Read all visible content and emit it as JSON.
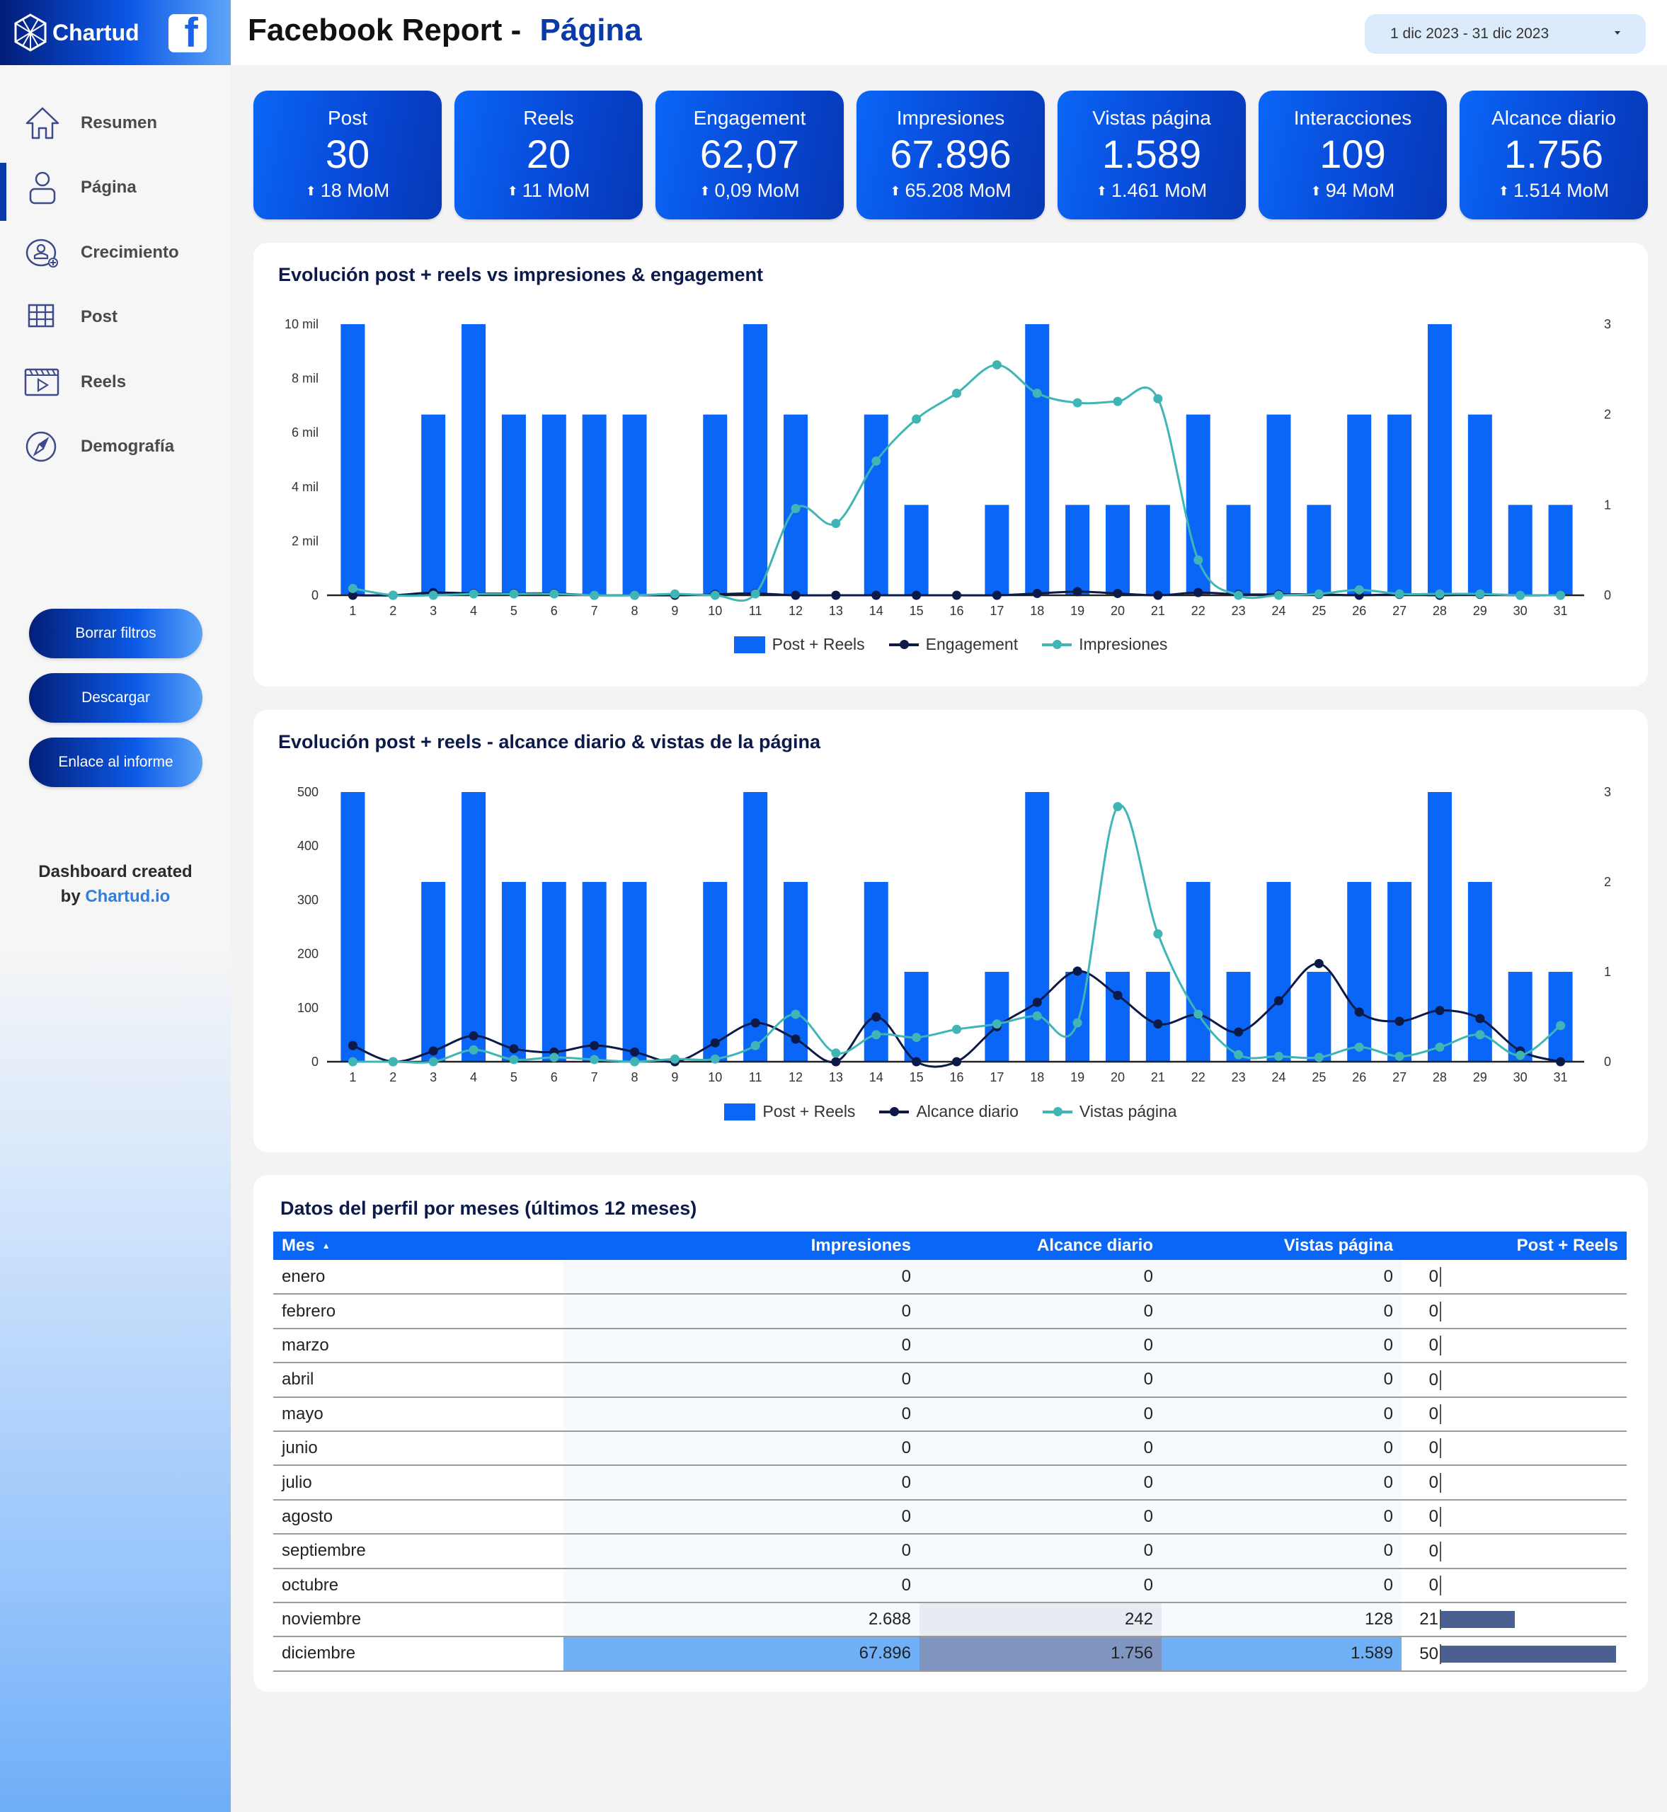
{
  "brand": {
    "name": "Chartud",
    "social_icon": "facebook-icon"
  },
  "header": {
    "title": "Facebook Report - ",
    "subtitle": "Página",
    "date_range": "1 dic 2023 - 31 dic 2023"
  },
  "sidebar": {
    "items": [
      {
        "label": "Resumen",
        "icon": "home-icon",
        "active": false
      },
      {
        "label": "Página",
        "icon": "user-icon",
        "active": true
      },
      {
        "label": "Crecimiento",
        "icon": "user-add-icon",
        "active": false
      },
      {
        "label": "Post",
        "icon": "grid-icon",
        "active": false
      },
      {
        "label": "Reels",
        "icon": "video-icon",
        "active": false
      },
      {
        "label": "Demografía",
        "icon": "compass-icon",
        "active": false
      }
    ],
    "buttons": {
      "clear": "Borrar filtros",
      "download": "Descargar",
      "link": "Enlace al informe"
    },
    "credit_line1": "Dashboard created",
    "credit_by": "by ",
    "credit_link": "Chartud.io"
  },
  "kpis": [
    {
      "label": "Post",
      "value": "30",
      "delta": "18 MoM"
    },
    {
      "label": "Reels",
      "value": "20",
      "delta": "11 MoM"
    },
    {
      "label": "Engagement",
      "value": "62,07",
      "delta": "0,09 MoM"
    },
    {
      "label": "Impresiones",
      "value": "67.896",
      "delta": "65.208 MoM"
    },
    {
      "label": "Vistas página",
      "value": "1.589",
      "delta": "1.461 MoM"
    },
    {
      "label": "Interacciones",
      "value": "109",
      "delta": "94 MoM"
    },
    {
      "label": "Alcance diario",
      "value": "1.756",
      "delta": "1.514 MoM"
    }
  ],
  "colors": {
    "bar": "#0a66f6",
    "dark_line": "#0c1a4a",
    "teal_line": "#3fb5b5",
    "kpi_blue": "#0848d6",
    "accent": "#0a3aa8"
  },
  "chart_data": [
    {
      "type": "bar+line",
      "title": "Evolución post + reels vs impresiones & engagement",
      "categories": [
        "1",
        "2",
        "3",
        "4",
        "5",
        "6",
        "7",
        "8",
        "9",
        "10",
        "11",
        "12",
        "13",
        "14",
        "15",
        "16",
        "17",
        "18",
        "19",
        "20",
        "21",
        "22",
        "23",
        "24",
        "25",
        "26",
        "27",
        "28",
        "29",
        "30",
        "31"
      ],
      "left_axis": {
        "ticks": [
          "0",
          "2 mil",
          "4 mil",
          "6 mil",
          "8 mil",
          "10 mil"
        ],
        "range": [
          0,
          10000
        ]
      },
      "right_axis": {
        "ticks": [
          "0",
          "1",
          "2",
          "3"
        ],
        "range": [
          0,
          3
        ]
      },
      "series": [
        {
          "name": "Post + Reels",
          "type": "bar",
          "axis": "right",
          "values": [
            3,
            0,
            2,
            3,
            2,
            2,
            2,
            2,
            0,
            2,
            3,
            2,
            0,
            2,
            1,
            0,
            1,
            3,
            1,
            1,
            1,
            2,
            1,
            2,
            1,
            2,
            2,
            3,
            2,
            1,
            1
          ]
        },
        {
          "name": "Engagement",
          "type": "line",
          "axis": "right",
          "values": [
            0,
            0,
            0.03,
            0.02,
            0.02,
            0.02,
            0,
            0,
            0,
            0.01,
            0.02,
            0,
            0,
            0,
            0,
            0,
            0,
            0.02,
            0.04,
            0.02,
            0,
            0.03,
            0.01,
            0.01,
            0.01,
            0,
            0.01,
            0,
            0.01,
            0,
            0
          ]
        },
        {
          "name": "Impresiones",
          "type": "line",
          "axis": "left",
          "values": [
            250,
            0,
            0,
            50,
            50,
            50,
            0,
            0,
            50,
            0,
            50,
            3200,
            2650,
            4950,
            6500,
            7450,
            8500,
            7450,
            7100,
            7150,
            7250,
            1300,
            0,
            0,
            50,
            200,
            50,
            50,
            50,
            0,
            0
          ]
        }
      ],
      "legend": [
        "Post + Reels",
        "Engagement",
        "Impresiones"
      ]
    },
    {
      "type": "bar+line",
      "title": "Evolución post + reels - alcance diario & vistas de la página",
      "categories": [
        "1",
        "2",
        "3",
        "4",
        "5",
        "6",
        "7",
        "8",
        "9",
        "10",
        "11",
        "12",
        "13",
        "14",
        "15",
        "16",
        "17",
        "18",
        "19",
        "20",
        "21",
        "22",
        "23",
        "24",
        "25",
        "26",
        "27",
        "28",
        "29",
        "30",
        "31"
      ],
      "left_axis": {
        "ticks": [
          "0",
          "100",
          "200",
          "300",
          "400",
          "500"
        ],
        "range": [
          0,
          500
        ]
      },
      "right_axis": {
        "ticks": [
          "0",
          "1",
          "2",
          "3"
        ],
        "range": [
          0,
          3
        ]
      },
      "series": [
        {
          "name": "Post + Reels",
          "type": "bar",
          "axis": "right",
          "values": [
            3,
            0,
            2,
            3,
            2,
            2,
            2,
            2,
            0,
            2,
            3,
            2,
            0,
            2,
            1,
            0,
            1,
            3,
            1,
            1,
            1,
            2,
            1,
            2,
            1,
            2,
            2,
            3,
            2,
            1,
            1
          ]
        },
        {
          "name": "Alcance diario",
          "type": "line",
          "axis": "left",
          "values": [
            30,
            0,
            20,
            48,
            24,
            18,
            30,
            18,
            0,
            35,
            72,
            42,
            0,
            83,
            0,
            0,
            65,
            110,
            168,
            123,
            70,
            87,
            55,
            113,
            182,
            92,
            75,
            95,
            80,
            20,
            0
          ]
        },
        {
          "name": "Vistas página",
          "type": "line",
          "axis": "left",
          "values": [
            0,
            0,
            0,
            22,
            4,
            8,
            4,
            0,
            5,
            5,
            30,
            88,
            16,
            50,
            45,
            60,
            70,
            85,
            72,
            473,
            237,
            88,
            13,
            10,
            8,
            27,
            10,
            27,
            50,
            12,
            67
          ]
        }
      ],
      "legend": [
        "Post + Reels",
        "Alcance diario",
        "Vistas página"
      ]
    },
    {
      "type": "table",
      "title": "Datos del perfil por meses (últimos 12 meses)",
      "columns": [
        "Mes",
        "Impresiones",
        "Alcance diario",
        "Vistas página",
        "Post + Reels"
      ],
      "rows": [
        [
          "enero",
          "0",
          "0",
          "0",
          "0"
        ],
        [
          "febrero",
          "0",
          "0",
          "0",
          "0"
        ],
        [
          "marzo",
          "0",
          "0",
          "0",
          "0"
        ],
        [
          "abril",
          "0",
          "0",
          "0",
          "0"
        ],
        [
          "mayo",
          "0",
          "0",
          "0",
          "0"
        ],
        [
          "junio",
          "0",
          "0",
          "0",
          "0"
        ],
        [
          "julio",
          "0",
          "0",
          "0",
          "0"
        ],
        [
          "agosto",
          "0",
          "0",
          "0",
          "0"
        ],
        [
          "septiembre",
          "0",
          "0",
          "0",
          "0"
        ],
        [
          "octubre",
          "0",
          "0",
          "0",
          "0"
        ],
        [
          "noviembre",
          "2.688",
          "242",
          "128",
          "21"
        ],
        [
          "diciembre",
          "67.896",
          "1.756",
          "1.589",
          "50"
        ]
      ]
    }
  ],
  "table": {
    "title": "Datos del perfil por meses (últimos 12 meses)",
    "sort_indicator": "▲",
    "columns": [
      "Mes",
      "Impresiones",
      "Alcance diario",
      "Vistas página",
      "Post + Reels"
    ]
  }
}
